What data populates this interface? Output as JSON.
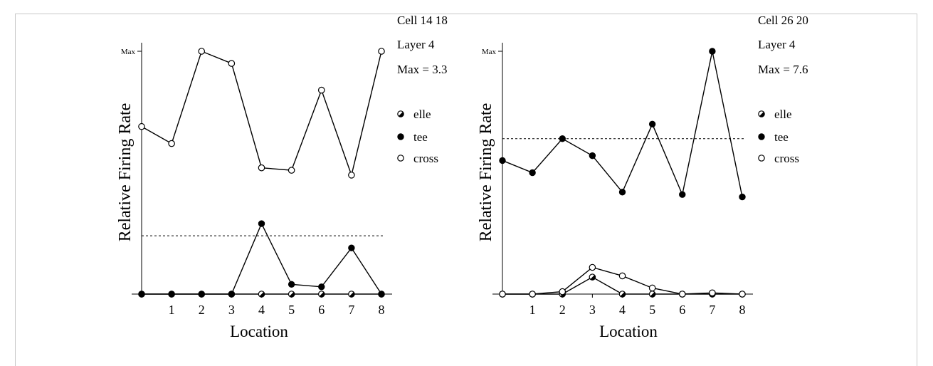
{
  "chart_data": [
    {
      "type": "line",
      "info": [
        "Cell 14 18",
        "Layer 4",
        "Max = 3.3"
      ],
      "xlabel": "Location",
      "ylabel": "Relative Firing Rate",
      "ymax_label": "Max",
      "x": [
        0,
        1,
        2,
        3,
        4,
        5,
        6,
        7,
        8
      ],
      "x_tick_labels": [
        "",
        "1",
        "2",
        "3",
        "4",
        "5",
        "6",
        "7",
        "8"
      ],
      "ylim": [
        0,
        1
      ],
      "xlim": [
        0,
        8
      ],
      "threshold": 0.24,
      "legend": [
        {
          "name": "elle",
          "marker": "half"
        },
        {
          "name": "tee",
          "marker": "filled"
        },
        {
          "name": "cross",
          "marker": "open"
        }
      ],
      "series": [
        {
          "name": "elle",
          "marker": "half",
          "values": [
            0,
            0,
            0,
            0,
            0,
            0,
            0,
            0,
            0
          ]
        },
        {
          "name": "tee",
          "marker": "filled",
          "values": [
            0,
            0,
            0,
            0,
            0.29,
            0.04,
            0.03,
            0.19,
            0
          ]
        },
        {
          "name": "cross",
          "marker": "open",
          "values": [
            0.69,
            0.62,
            1.0,
            0.95,
            0.52,
            0.51,
            0.84,
            0.49,
            1.0
          ]
        }
      ]
    },
    {
      "type": "line",
      "info": [
        "Cell 26 20",
        "Layer 4",
        "Max = 7.6"
      ],
      "xlabel": "Location",
      "ylabel": "Relative Firing Rate",
      "ymax_label": "Max",
      "x": [
        0,
        1,
        2,
        3,
        4,
        5,
        6,
        7,
        8
      ],
      "x_tick_labels": [
        "",
        "1",
        "2",
        "3",
        "4",
        "5",
        "6",
        "7",
        "8"
      ],
      "ylim": [
        0,
        1
      ],
      "xlim": [
        0,
        8
      ],
      "threshold": 0.64,
      "legend": [
        {
          "name": "elle",
          "marker": "half"
        },
        {
          "name": "tee",
          "marker": "filled"
        },
        {
          "name": "cross",
          "marker": "open"
        }
      ],
      "series": [
        {
          "name": "elle",
          "marker": "half",
          "values": [
            0,
            0,
            0,
            0.07,
            0,
            0,
            0,
            0,
            0
          ]
        },
        {
          "name": "tee",
          "marker": "filled",
          "values": [
            0.55,
            0.5,
            0.64,
            0.57,
            0.42,
            0.7,
            0.41,
            1.0,
            0.4
          ]
        },
        {
          "name": "cross",
          "marker": "open",
          "values": [
            0,
            0,
            0.01,
            0.11,
            0.075,
            0.025,
            0,
            0.005,
            0
          ]
        }
      ]
    }
  ]
}
